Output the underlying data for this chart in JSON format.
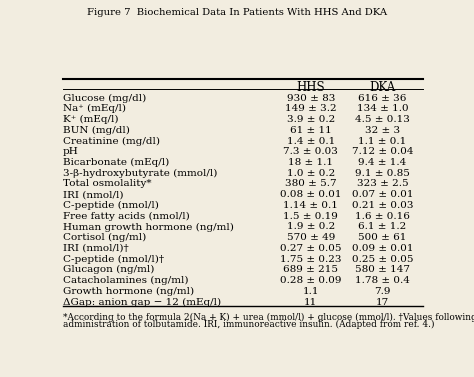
{
  "title": "Figure 7  Biochemical Data In Patients With HHS And DKA",
  "rows": [
    [
      "Glucose (mg/dl)",
      "930 ± 83",
      "616 ± 36"
    ],
    [
      "Na⁺ (mEq/l)",
      "149 ± 3.2",
      "134 ± 1.0"
    ],
    [
      "K⁺ (mEq/l)",
      "3.9 ± 0.2",
      "4.5 ± 0.13"
    ],
    [
      "BUN (mg/dl)",
      "61 ± 11",
      "32 ± 3"
    ],
    [
      "Creatinine (mg/dl)",
      "1.4 ± 0.1",
      "1.1 ± 0.1"
    ],
    [
      "pH",
      "7.3 ± 0.03",
      "7.12 ± 0.04"
    ],
    [
      "Bicarbonate (mEq/l)",
      "18 ± 1.1",
      "9.4 ± 1.4"
    ],
    [
      "3-β-hydroxybutyrate (mmol/l)",
      "1.0 ± 0.2",
      "9.1 ± 0.85"
    ],
    [
      "Total osmolality*",
      "380 ± 5.7",
      "323 ± 2.5"
    ],
    [
      "IRI (nmol/l)",
      "0.08 ± 0.01",
      "0.07 ± 0.01"
    ],
    [
      "C-peptide (nmol/l)",
      "1.14 ± 0.1",
      "0.21 ± 0.03"
    ],
    [
      "Free fatty acids (nmol/l)",
      "1.5 ± 0.19",
      "1.6 ± 0.16"
    ],
    [
      "Human growth hormone (ng/ml)",
      "1.9 ± 0.2",
      "6.1 ± 1.2"
    ],
    [
      "Cortisol (ng/ml)",
      "570 ± 49",
      "500 ± 61"
    ],
    [
      "IRI (nmol/l)†",
      "0.27 ± 0.05",
      "0.09 ± 0.01"
    ],
    [
      "C-peptide (nmol/l)†",
      "1.75 ± 0.23",
      "0.25 ± 0.05"
    ],
    [
      "Glucagon (ng/ml)",
      "689 ± 215",
      "580 ± 147"
    ],
    [
      "Catacholamines (ng/ml)",
      "0.28 ± 0.09",
      "1.78 ± 0.4"
    ],
    [
      "Growth hormone (ng/ml)",
      "1.1",
      "7.9"
    ],
    [
      "ΔGap: anion gap − 12 (mEq/l)",
      "11",
      "17"
    ]
  ],
  "footnote1": "*According to the formula 2(Na + K) + urea (mmol/l) + glucose (mmol/l). †Values following intravenous",
  "footnote2": "administration of tolbutamide. IRI, immunoreactive insulin. (Adapted from ref. 4.)",
  "bg_color": "#f2ede0",
  "text_color": "#000000",
  "header_fontsize": 8.5,
  "row_fontsize": 7.5,
  "footnote_fontsize": 6.4,
  "title_fontsize": 7.2
}
